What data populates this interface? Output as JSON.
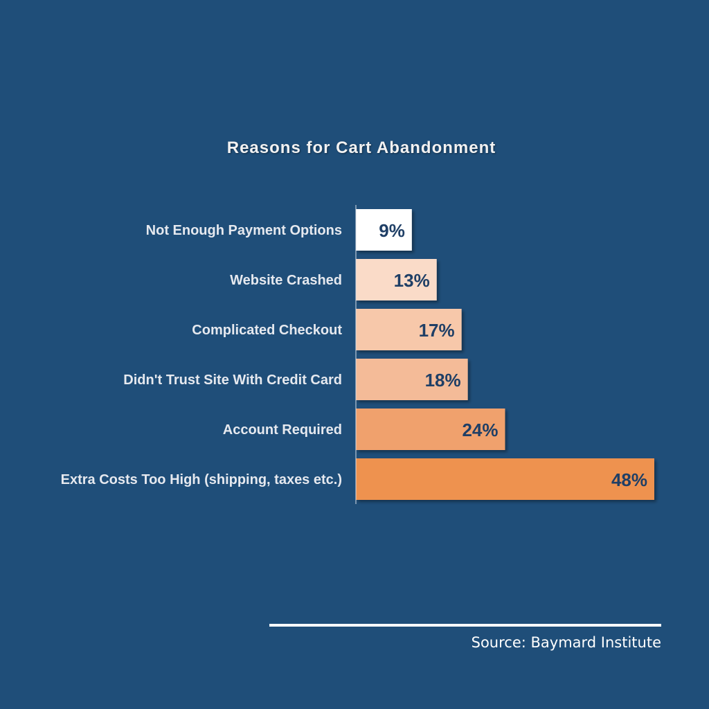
{
  "background_color": "#1f4e79",
  "chart_data": {
    "type": "bar",
    "orientation": "horizontal",
    "title": "Reasons for Cart Abandonment",
    "categories": [
      "Not Enough Payment Options",
      "Website Crashed",
      "Complicated Checkout",
      "Didn't Trust Site With Credit Card",
      "Account Required",
      "Extra Costs Too High (shipping, taxes etc.)"
    ],
    "values": [
      9,
      13,
      17,
      18,
      24,
      48
    ],
    "value_labels": [
      "9%",
      "13%",
      "17%",
      "18%",
      "24%",
      "48%"
    ],
    "bar_colors": [
      "#ffffff",
      "#fadbc8",
      "#f7c8aa",
      "#f4bb98",
      "#f0a16d",
      "#ee9250"
    ],
    "unit": "%",
    "xlim": [
      0,
      48
    ],
    "grid": false,
    "legend": "none"
  },
  "source": "Source: Baymard Institute"
}
